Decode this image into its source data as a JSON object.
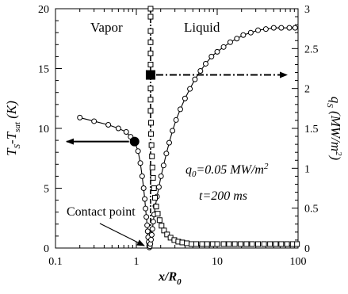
{
  "chart_data": {
    "type": "scatter",
    "x_axis": {
      "label": "x/R",
      "label_sub": "0",
      "scale": "log",
      "range": [
        0.1,
        100
      ],
      "ticks": [
        0.1,
        1,
        10,
        100
      ],
      "tick_labels": [
        "0.1",
        "1",
        "10",
        "100"
      ]
    },
    "y_axis_left": {
      "label_main": "T",
      "label_sub1": "S",
      "label_mid": "-T",
      "label_sub2": "sat",
      "label_tail": " (K)",
      "range": [
        0,
        20
      ],
      "ticks": [
        0,
        5,
        10,
        15,
        20
      ],
      "tick_labels": [
        "0",
        "5",
        "10",
        "15",
        "20"
      ]
    },
    "y_axis_right": {
      "label_main": "q",
      "label_sub": "S",
      "label_unit": " (MW/m",
      "label_sup": "2",
      "label_close": ")",
      "range": [
        0,
        3
      ],
      "ticks": [
        0,
        0.5,
        1,
        1.5,
        2,
        2.5,
        3
      ],
      "tick_labels": [
        "0",
        "0.5",
        "1",
        "1.5",
        "2",
        "2.5",
        "3"
      ]
    },
    "region_labels": {
      "left": "Vapor",
      "right": "Liquid"
    },
    "annotations": {
      "contact_point": "Contact point",
      "q0_main": "q",
      "q0_sub": "0",
      "q0_val": "=0.05 MW/m",
      "q0_sup": "2",
      "time": "t=200 ms"
    },
    "contact_line_x": 1.5,
    "series": [
      {
        "axis": "left",
        "marker": "circle",
        "points": [
          [
            0.2,
            10.9
          ],
          [
            0.3,
            10.6
          ],
          [
            0.45,
            10.3
          ],
          [
            0.6,
            10.0
          ],
          [
            0.75,
            9.7
          ],
          [
            0.85,
            9.3
          ],
          [
            0.95,
            8.9
          ],
          [
            1.05,
            8.1
          ],
          [
            1.12,
            7.1
          ],
          [
            1.18,
            6.0
          ],
          [
            1.23,
            5.0
          ],
          [
            1.27,
            4.1
          ],
          [
            1.3,
            3.3
          ],
          [
            1.33,
            2.6
          ],
          [
            1.36,
            1.9
          ],
          [
            1.38,
            1.4
          ],
          [
            1.4,
            0.9
          ],
          [
            1.42,
            0.5
          ],
          [
            1.44,
            0.2
          ],
          [
            1.45,
            0.05
          ],
          [
            1.47,
            0.15
          ],
          [
            1.49,
            0.35
          ],
          [
            1.52,
            0.7
          ],
          [
            1.55,
            1.1
          ],
          [
            1.58,
            1.6
          ],
          [
            1.62,
            2.2
          ],
          [
            1.66,
            2.8
          ],
          [
            1.72,
            3.5
          ],
          [
            1.8,
            4.3
          ],
          [
            1.9,
            5.1
          ],
          [
            2.02,
            6.0
          ],
          [
            2.17,
            6.9
          ],
          [
            2.35,
            7.9
          ],
          [
            2.55,
            8.8
          ],
          [
            2.8,
            9.8
          ],
          [
            3.1,
            10.7
          ],
          [
            3.5,
            11.6
          ],
          [
            4.0,
            12.5
          ],
          [
            4.6,
            13.3
          ],
          [
            5.3,
            14.1
          ],
          [
            6.2,
            14.8
          ],
          [
            7.2,
            15.4
          ],
          [
            8.5,
            16.0
          ],
          [
            10,
            16.4
          ],
          [
            12,
            16.8
          ],
          [
            14.5,
            17.2
          ],
          [
            17.5,
            17.5
          ],
          [
            21,
            17.8
          ],
          [
            26,
            18.0
          ],
          [
            32,
            18.2
          ],
          [
            40,
            18.3
          ],
          [
            50,
            18.4
          ],
          [
            62,
            18.4
          ],
          [
            78,
            18.4
          ],
          [
            92,
            18.4
          ]
        ]
      },
      {
        "axis": "right",
        "marker": "square",
        "points": [
          [
            1.5,
            3.0
          ],
          [
            1.5,
            2.9
          ],
          [
            1.5,
            2.72
          ],
          [
            1.5,
            2.58
          ],
          [
            1.5,
            2.44
          ],
          [
            1.5,
            2.3
          ],
          [
            1.5,
            2.17
          ],
          [
            1.5,
            2.0
          ],
          [
            1.5,
            1.86
          ],
          [
            1.5,
            1.72
          ],
          [
            1.52,
            1.57
          ],
          [
            1.52,
            1.43
          ],
          [
            1.54,
            1.29
          ],
          [
            1.56,
            1.15
          ],
          [
            1.58,
            1.01
          ],
          [
            1.61,
            0.88
          ],
          [
            1.65,
            0.75
          ],
          [
            1.7,
            0.63
          ],
          [
            1.76,
            0.52
          ],
          [
            1.84,
            0.43
          ],
          [
            1.94,
            0.35
          ],
          [
            2.05,
            0.28
          ],
          [
            2.2,
            0.22
          ],
          [
            2.4,
            0.17
          ],
          [
            2.65,
            0.13
          ],
          [
            2.95,
            0.1
          ],
          [
            3.3,
            0.08
          ],
          [
            3.7,
            0.07
          ],
          [
            4.2,
            0.06
          ],
          [
            4.8,
            0.05
          ],
          [
            5.5,
            0.05
          ],
          [
            6.5,
            0.05
          ],
          [
            7.5,
            0.05
          ],
          [
            8.8,
            0.05
          ],
          [
            10,
            0.05
          ],
          [
            12,
            0.05
          ],
          [
            14,
            0.05
          ],
          [
            16.5,
            0.05
          ],
          [
            19.5,
            0.05
          ],
          [
            23,
            0.05
          ],
          [
            27,
            0.05
          ],
          [
            32,
            0.05
          ],
          [
            38,
            0.05
          ],
          [
            45,
            0.05
          ],
          [
            53,
            0.05
          ],
          [
            62,
            0.05
          ],
          [
            73,
            0.05
          ],
          [
            86,
            0.05
          ],
          [
            97,
            0.05
          ]
        ]
      }
    ],
    "highlight_markers": [
      {
        "axis": "left",
        "x": 0.95,
        "y": 8.9,
        "shape": "circle",
        "arrow": "left"
      },
      {
        "axis": "right",
        "x": 1.5,
        "y": 2.17,
        "shape": "square",
        "arrow": "right"
      }
    ]
  }
}
